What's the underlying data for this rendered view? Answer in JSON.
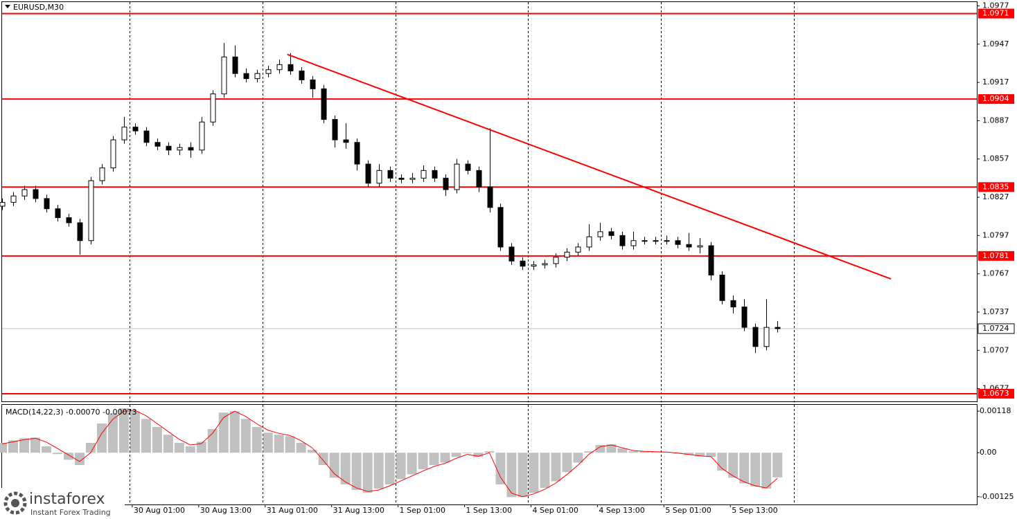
{
  "chart_data": [
    {
      "type": "candlestick",
      "title": "EURUSD,M30",
      "x": [
        0,
        4,
        8,
        12,
        16,
        20,
        24,
        28,
        32,
        36,
        40,
        44,
        48,
        52,
        56,
        60,
        64,
        68,
        72,
        76,
        80,
        84,
        88,
        92,
        96,
        100,
        104,
        108,
        112,
        116,
        120,
        124,
        128,
        132,
        136,
        140,
        144,
        148,
        152,
        156,
        160,
        164,
        168,
        172,
        176,
        180,
        184,
        188,
        192,
        196,
        200,
        204,
        208,
        212,
        216,
        220,
        224,
        228,
        232,
        236,
        240,
        244,
        248,
        252,
        256,
        260,
        264,
        268,
        272,
        276,
        280
      ],
      "open": [
        1.082,
        1.0823,
        1.0828,
        1.0833,
        1.0826,
        1.0818,
        1.0811,
        1.0807,
        1.0793,
        1.084,
        1.085,
        1.0872,
        1.0882,
        1.0879,
        1.087,
        1.0867,
        1.0864,
        1.0866,
        1.0864,
        1.0886,
        1.0908,
        1.0937,
        1.0924,
        1.092,
        1.0924,
        1.0927,
        1.0931,
        1.0926,
        1.0919,
        1.0912,
        1.0888,
        1.0872,
        1.087,
        1.0853,
        1.0838,
        1.0848,
        1.0842,
        1.0841,
        1.0842,
        1.0848,
        1.0842,
        1.0833,
        1.0853,
        1.0848,
        1.0835,
        1.0819,
        1.0788,
        1.0777,
        1.0773,
        1.0774,
        1.0775,
        1.078,
        1.0784,
        1.0788,
        1.0796,
        1.08,
        1.0797,
        1.0789,
        1.0793,
        1.0793,
        1.0793,
        1.0793,
        1.079,
        1.0788,
        1.0789,
        1.0766,
        1.0746,
        1.0741,
        1.0725,
        1.071,
        1.0725
      ],
      "high": [
        1.0826,
        1.0831,
        1.0836,
        1.0836,
        1.0829,
        1.0821,
        1.0814,
        1.081,
        1.0843,
        1.0853,
        1.0875,
        1.089,
        1.0885,
        1.0882,
        1.0873,
        1.087,
        1.0869,
        1.087,
        1.089,
        1.0911,
        1.0948,
        1.0946,
        1.0928,
        1.0927,
        1.093,
        1.0935,
        1.094,
        1.0929,
        1.0922,
        1.0915,
        1.0891,
        1.0885,
        1.0873,
        1.0856,
        1.0853,
        1.0851,
        1.0845,
        1.0846,
        1.0852,
        1.0851,
        1.0845,
        1.0857,
        1.0856,
        1.0851,
        1.0881,
        1.0822,
        1.0791,
        1.078,
        1.0777,
        1.0778,
        1.0783,
        1.0787,
        1.0791,
        1.0806,
        1.0807,
        1.0803,
        1.08,
        1.08,
        1.0796,
        1.0796,
        1.0797,
        1.0796,
        1.0799,
        1.0795,
        1.0792,
        1.0769,
        1.075,
        1.0747,
        1.0728,
        1.0747,
        1.073
      ],
      "low": [
        1.0817,
        1.082,
        1.0825,
        1.0823,
        1.0815,
        1.0808,
        1.0804,
        1.0782,
        1.079,
        1.0837,
        1.0847,
        1.0869,
        1.0876,
        1.0867,
        1.0864,
        1.086,
        1.086,
        1.0858,
        1.0861,
        1.0883,
        1.0905,
        1.0921,
        1.0917,
        1.0917,
        1.0921,
        1.0924,
        1.0923,
        1.0916,
        1.0905,
        1.0885,
        1.0866,
        1.0865,
        1.0848,
        1.0835,
        1.0835,
        1.0839,
        1.0838,
        1.0838,
        1.0839,
        1.0839,
        1.0828,
        1.083,
        1.0845,
        1.0831,
        1.0815,
        1.0785,
        1.0774,
        1.077,
        1.077,
        1.0771,
        1.0772,
        1.0777,
        1.0781,
        1.0785,
        1.0793,
        1.0794,
        1.0786,
        1.0786,
        1.079,
        1.079,
        1.079,
        1.0787,
        1.0785,
        1.0783,
        1.0762,
        1.0743,
        1.0736,
        1.0722,
        1.0705,
        1.0707,
        1.0721
      ],
      "close": [
        1.0823,
        1.0828,
        1.0833,
        1.0826,
        1.0818,
        1.0811,
        1.0807,
        1.0793,
        1.084,
        1.085,
        1.0872,
        1.0882,
        1.0879,
        1.087,
        1.0867,
        1.0864,
        1.0866,
        1.0864,
        1.0886,
        1.0908,
        1.0937,
        1.0924,
        1.092,
        1.0924,
        1.0927,
        1.0931,
        1.0926,
        1.0919,
        1.0912,
        1.0888,
        1.0872,
        1.087,
        1.0853,
        1.0838,
        1.0848,
        1.0842,
        1.0841,
        1.0842,
        1.0848,
        1.0842,
        1.0833,
        1.0853,
        1.0848,
        1.0835,
        1.0819,
        1.0788,
        1.0777,
        1.0773,
        1.0774,
        1.0775,
        1.078,
        1.0784,
        1.0788,
        1.0796,
        1.08,
        1.0797,
        1.0789,
        1.0793,
        1.0793,
        1.0793,
        1.0793,
        1.079,
        1.0788,
        1.0789,
        1.0766,
        1.0746,
        1.0741,
        1.0725,
        1.071,
        1.0725,
        1.0724
      ],
      "bull_color": "#ffffff",
      "bear_color": "#000000",
      "xlim": [
        0,
        352
      ],
      "xticks": [
        {
          "value": 47,
          "label": "30 Aug 01:00"
        },
        {
          "value": 71,
          "label": "30 Aug 13:00"
        },
        {
          "value": 95,
          "label": "31 Aug 01:00"
        },
        {
          "value": 119,
          "label": "31 Aug 13:00"
        },
        {
          "value": 143,
          "label": "1 Sep 01:00"
        },
        {
          "value": 167,
          "label": "1 Sep 13:00"
        },
        {
          "value": 191,
          "label": "4 Sep 01:00"
        },
        {
          "value": 215,
          "label": "4 Sep 13:00"
        },
        {
          "value": 239,
          "label": "5 Sep 01:00"
        },
        {
          "value": 263,
          "label": "5 Sep 13:00"
        }
      ],
      "xgrid": [
        46,
        94,
        142,
        190,
        238,
        286
      ],
      "ylim": [
        1.0667,
        1.098
      ],
      "yticks": [
        1.0977,
        1.0947,
        1.0917,
        1.0887,
        1.0857,
        1.0827,
        1.0797,
        1.0767,
        1.0737,
        1.0707,
        1.0677
      ],
      "levels": [
        1.0971,
        1.0904,
        1.0835,
        1.0781,
        1.0673
      ],
      "level_color": "#ff0000",
      "last_price": 1.0724,
      "trendline": {
        "x": [
          103,
          321
        ],
        "y": [
          1.0939,
          1.0763
        ],
        "color": "#ff0000"
      }
    },
    {
      "type": "macd",
      "title": "MACD(14,22,3) -0.00070 -0.00073",
      "histogram": {
        "color": "#c0c0c0",
        "values": [
          0.00028,
          0.00035,
          0.00041,
          0.00043,
          0.00018,
          -4e-05,
          -0.0002,
          -0.00035,
          0.00028,
          0.00083,
          0.00112,
          0.00126,
          0.00118,
          0.00096,
          0.00073,
          0.00051,
          0.00028,
          0.00018,
          0.00031,
          0.00067,
          0.00114,
          0.00118,
          0.00096,
          0.00073,
          0.00057,
          0.00051,
          0.00047,
          0.00028,
          8e-05,
          -0.00035,
          -0.00071,
          -0.0009,
          -0.00106,
          -0.00114,
          -0.00102,
          -0.0009,
          -0.00075,
          -0.00061,
          -0.00047,
          -0.00035,
          -0.00028,
          -0.00012,
          -2e-05,
          -0.00012,
          4e-05,
          -0.0009,
          -0.00126,
          -0.00126,
          -0.00114,
          -0.001,
          -0.00081,
          -0.00055,
          -0.00028,
          4e-05,
          0.00022,
          0.00024,
          0.00012,
          4e-05,
          4e-05,
          2e-05,
          2e-05,
          -2e-05,
          -6e-05,
          -0.0001,
          -0.00012,
          -0.00051,
          -0.00071,
          -0.00087,
          -0.00096,
          -0.00102,
          -0.0007
        ]
      },
      "signal": {
        "color": "#ff0000",
        "values": [
          0.00025,
          0.00031,
          0.00037,
          0.00041,
          0.0003,
          0.00012,
          -6e-05,
          -0.00025,
          0.0,
          0.00055,
          0.00095,
          0.00118,
          0.0012,
          0.00105,
          0.00083,
          0.0006,
          0.00038,
          0.00022,
          0.00026,
          0.00055,
          0.001,
          0.00118,
          0.00103,
          0.00082,
          0.00064,
          0.00055,
          0.00049,
          0.00034,
          0.00014,
          -0.00022,
          -0.0006,
          -0.00083,
          -0.001,
          -0.0011,
          -0.00106,
          -0.00094,
          -0.0008,
          -0.00066,
          -0.00052,
          -0.00039,
          -0.0003,
          -0.00016,
          -5e-05,
          -0.0001,
          0.0,
          -0.0007,
          -0.00115,
          -0.00125,
          -0.00117,
          -0.00104,
          -0.00086,
          -0.00062,
          -0.00035,
          -4e-05,
          0.00017,
          0.00022,
          0.00014,
          6e-05,
          4e-05,
          3e-05,
          2e-05,
          -1e-05,
          -5e-05,
          -9e-05,
          -0.00011,
          -0.00045,
          -0.00066,
          -0.00083,
          -0.00094,
          -0.001,
          -0.00073
        ]
      },
      "ylim": [
        -0.00147,
        0.00136
      ],
      "yticks": [
        0.00118,
        {
          "value": 0,
          "label": "0.00"
        },
        -0.00125
      ]
    }
  ],
  "logo": {
    "name": "instaforex",
    "tagline": "Instant Forex Trading"
  }
}
